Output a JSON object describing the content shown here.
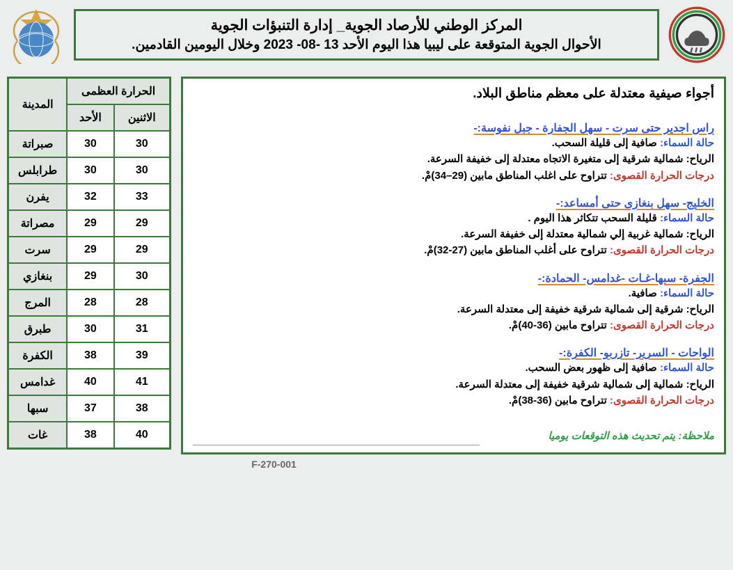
{
  "header": {
    "title_line1": "المركز الوطني للأرصاد الجوية_ إدارة التنبؤات الجوية",
    "title_line2": "الأحوال الجوية المتوقعة على ليبيا هذا اليوم الأحد 13 -08- 2023 وخلال اليومين القادمين."
  },
  "summary": "أجواء صيفية معتدلة على معظم مناطق البلاد.",
  "regions": [
    {
      "title": "راس اجدير حتى سرت - سهل الجفارة - جبل نفوسة:-",
      "sky": "حالة السماء: صافية إلى قليلة السحب.",
      "wind": "الرياح: شمالية شرقية إلى متغيرة الاتجاه معتدلة  إلى خفيفة السرعة.",
      "temp": "درجات الحرارة القصوى: تتراوح على اغلب المناطق مابين (29–34)مْ."
    },
    {
      "title": "الخليج- سهل بنغازى حتى أمساعد:-",
      "sky": "حالة السماء: قليلة السحب تتكاثر هذا اليوم .",
      "wind": "الرياح: شمالية غربية إلي شمالية معتدلة إلى  خفيفة السرعة.",
      "temp": "درجات الحرارة القصوى: تتراوح على أغلب المناطق مابين (27-32)مْ."
    },
    {
      "title": "الجفرة- سبها-غـات -غدامس- الحمادة:-",
      "sky": "حالة السماء: صافية.",
      "wind": "الرياح: شرقية إلى شمالية شرقية خفيفة إلى معتدلة السرعة.",
      "temp": "درجات الحرارة القصوى: تتراوح مابين (36-40)مْ."
    },
    {
      "title": "الواحات - السرير- تازربو- الكفرة:-",
      "sky": "حالة السماء: صافية إلى ظهور بعض السحب.",
      "wind": "الرياح: شمالية إلى شمالية شرقية خفيفة إلى معتدلة السرعة.",
      "temp": "درجات الحرارة القصوى: تتراوح مابين (36-38)مْ."
    }
  ],
  "note": "ملاحظة:  يتم تحديث هذه التوقعات يوميا",
  "table": {
    "header_maxtemp": "الحرارة العظمى",
    "header_city": "المدينة",
    "col_sun": "الأحد",
    "col_mon": "الاثنين",
    "rows": [
      {
        "city": "صبراتة",
        "sun": 30,
        "mon": 30
      },
      {
        "city": "طرابلس",
        "sun": 30,
        "mon": 30
      },
      {
        "city": "يفرن",
        "sun": 32,
        "mon": 33
      },
      {
        "city": "مصراتة",
        "sun": 29,
        "mon": 29
      },
      {
        "city": "سرت",
        "sun": 29,
        "mon": 29
      },
      {
        "city": "بنغازي",
        "sun": 29,
        "mon": 30
      },
      {
        "city": "المرج",
        "sun": 28,
        "mon": 28
      },
      {
        "city": "طبرق",
        "sun": 30,
        "mon": 31
      },
      {
        "city": "الكفرة",
        "sun": 38,
        "mon": 39
      },
      {
        "city": "غدامس",
        "sun": 40,
        "mon": 41
      },
      {
        "city": "سبها",
        "sun": 37,
        "mon": 38
      },
      {
        "city": "غات",
        "sun": 38,
        "mon": 40
      }
    ]
  },
  "footer_code": "F-270-001",
  "style": {
    "border_color": "#3c7a3c",
    "region_title_color": "#2f54d8",
    "underline_color": "#d48a2e",
    "sky_label_color": "#2f54d8",
    "temp_label_color": "#c0392b",
    "note_color": "#2f9e44",
    "background": "#eceded",
    "font_size_title": 21,
    "font_size_subtitle": 19,
    "font_size_summary": 19,
    "font_size_body": 15,
    "font_size_table": 16
  }
}
